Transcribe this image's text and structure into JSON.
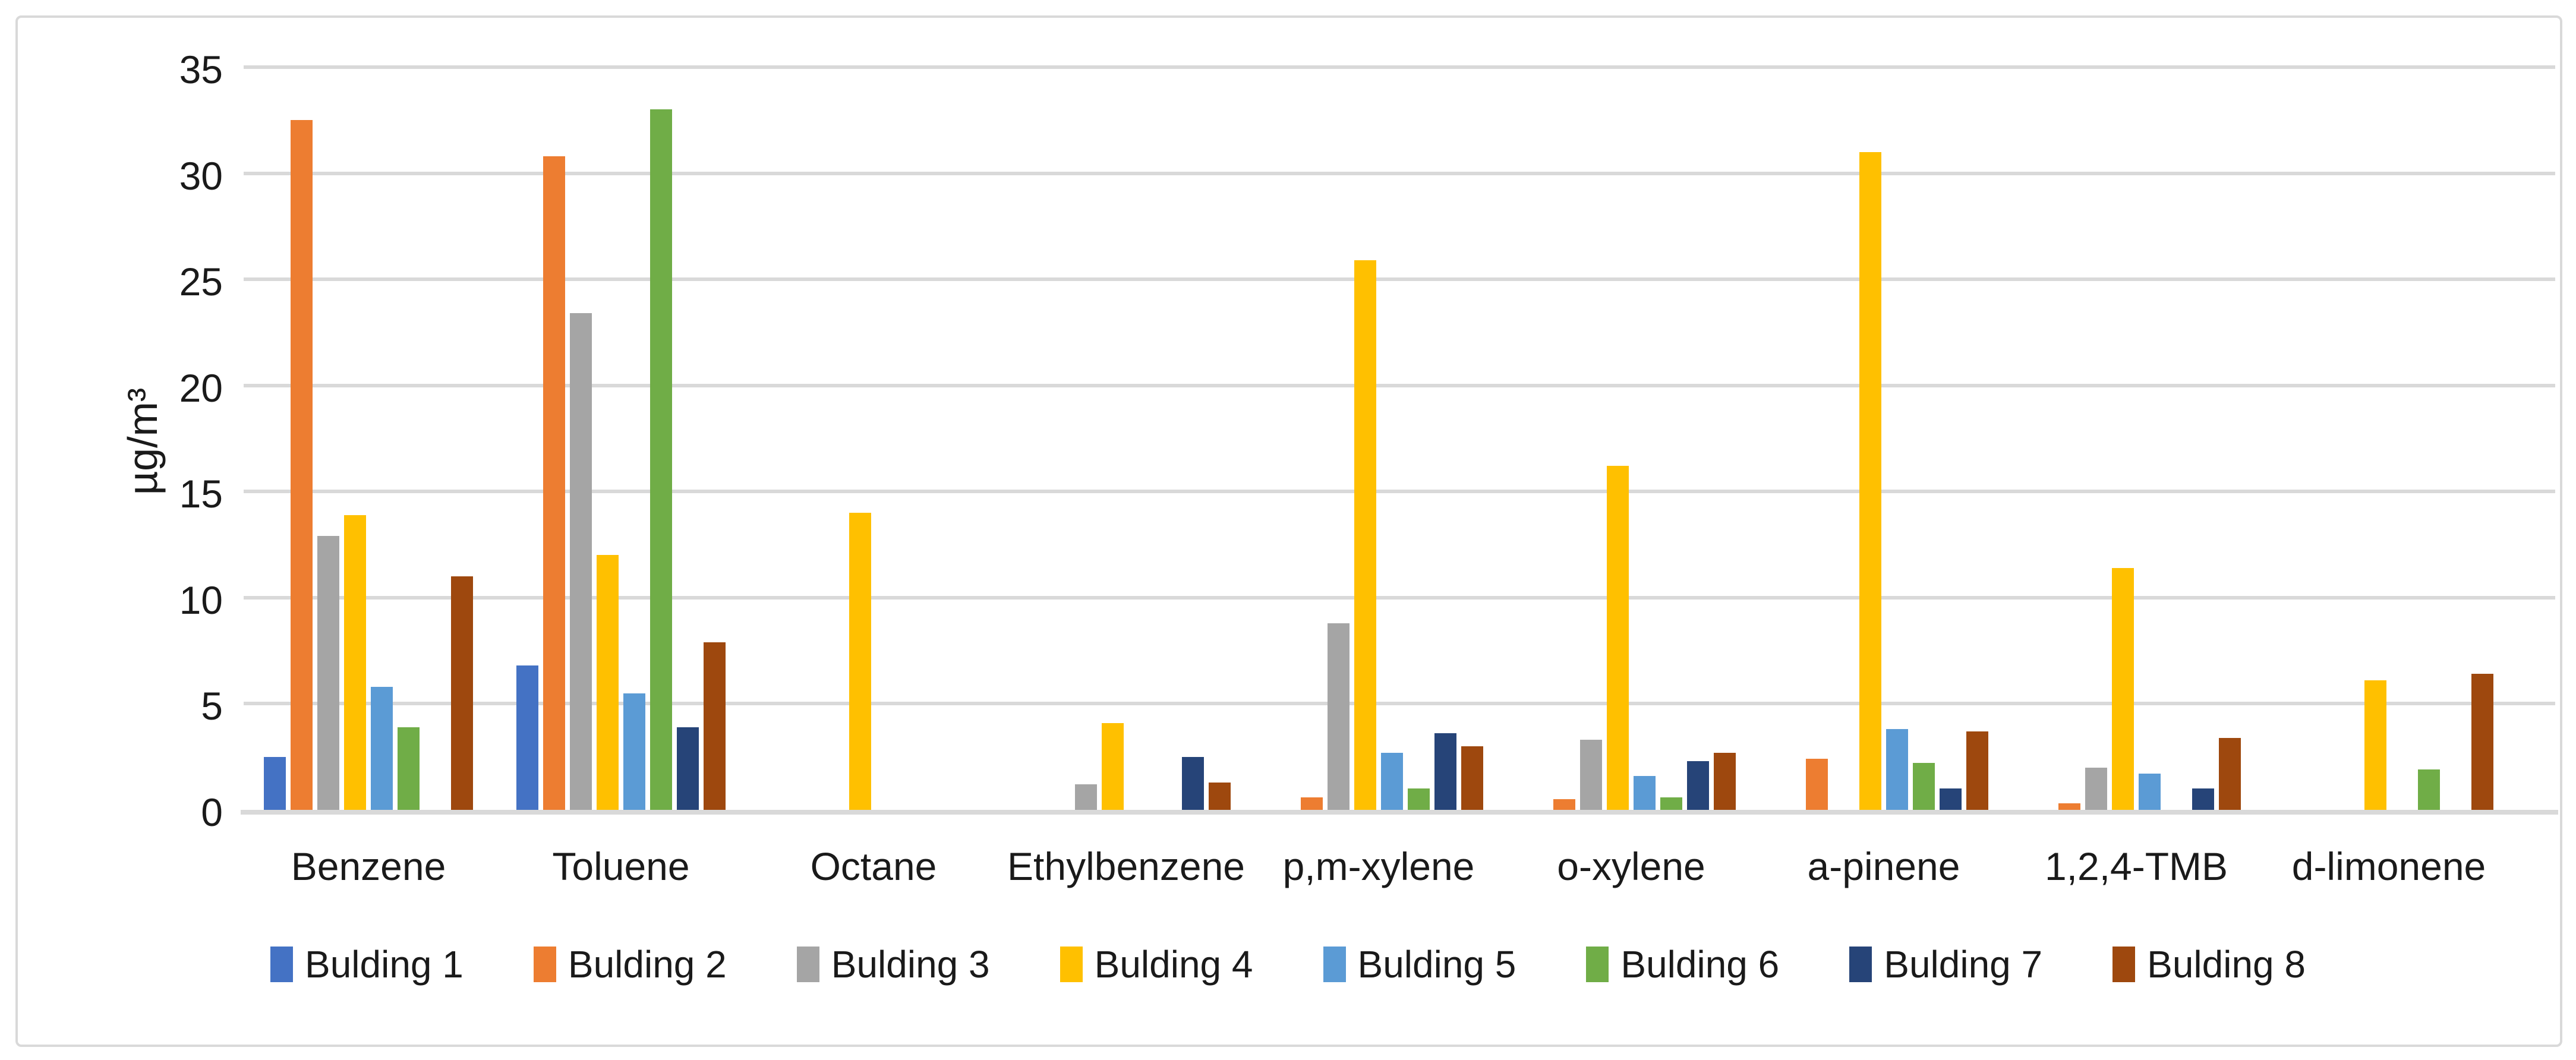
{
  "chart_data": {
    "type": "bar",
    "title": "",
    "ylabel": "µg/m³",
    "xlabel": "",
    "ylim": [
      0,
      35
    ],
    "yticks": [
      0,
      5,
      10,
      15,
      20,
      25,
      30,
      35
    ],
    "grid": true,
    "legend_position": "bottom",
    "gridline_color": "#d9d9d9",
    "text_color": "#1a1a1a",
    "categories": [
      "Benzene",
      "Toluene",
      "Octane",
      "Ethylbenzene",
      "p,m-xylene",
      "o-xylene",
      "a-pinene",
      "1,2,4-TMB",
      "d-limonene"
    ],
    "series": [
      {
        "name": "Bulding 1",
        "color": "#4472c4",
        "values": [
          2.5,
          6.8,
          0,
          0,
          0,
          0,
          0,
          0,
          0
        ]
      },
      {
        "name": "Bulding 2",
        "color": "#ed7d31",
        "values": [
          32.5,
          30.8,
          0,
          0,
          0.6,
          0.5,
          2.4,
          0.3,
          0
        ]
      },
      {
        "name": "Bulding 3",
        "color": "#a5a5a5",
        "values": [
          12.9,
          23.4,
          0,
          1.2,
          8.8,
          3.3,
          0,
          2.0,
          0
        ]
      },
      {
        "name": "Bulding 4",
        "color": "#ffc000",
        "values": [
          13.9,
          12.0,
          14.0,
          4.1,
          25.9,
          16.2,
          31.0,
          11.4,
          6.1
        ]
      },
      {
        "name": "Bulding 5",
        "color": "#5b9bd5",
        "values": [
          5.8,
          5.5,
          0,
          0,
          2.7,
          1.6,
          3.8,
          1.7,
          0
        ]
      },
      {
        "name": "Bulding 6",
        "color": "#70ad47",
        "values": [
          3.9,
          33.0,
          0,
          0,
          1.0,
          0.6,
          2.2,
          0,
          1.9
        ]
      },
      {
        "name": "Bulding 7",
        "color": "#264478",
        "values": [
          0,
          3.9,
          0,
          2.5,
          3.6,
          2.3,
          1.0,
          1.0,
          0
        ]
      },
      {
        "name": "Bulding 8",
        "color": "#9e480e",
        "values": [
          11.0,
          7.9,
          0,
          1.3,
          3.0,
          2.7,
          3.7,
          3.4,
          6.4
        ]
      }
    ]
  }
}
